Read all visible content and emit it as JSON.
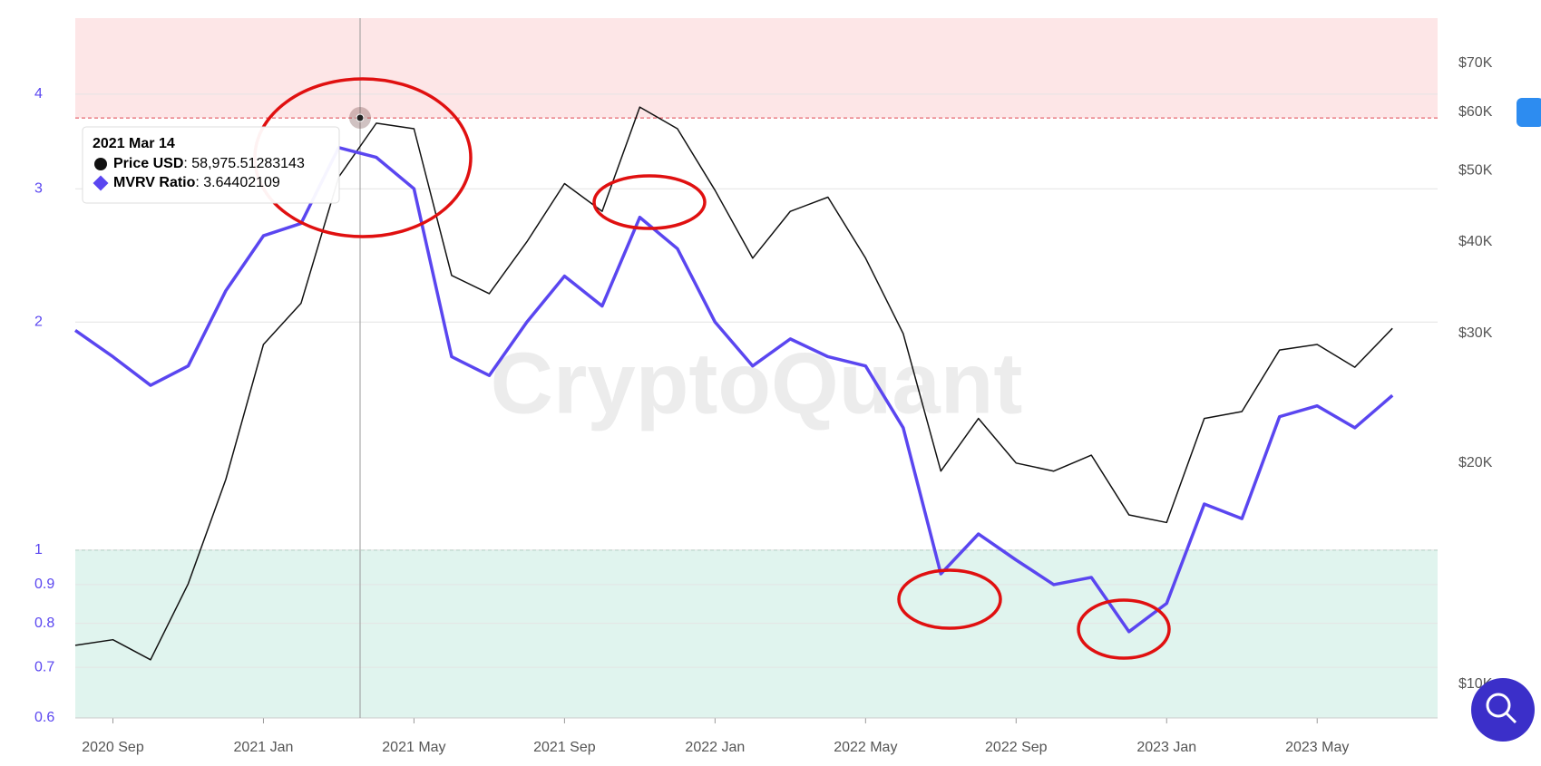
{
  "chart_data": {
    "type": "line",
    "watermark": "CryptoQuant",
    "categories": [
      "2020 Aug",
      "2020 Sep",
      "2020 Oct",
      "2020 Nov",
      "2020 Dec",
      "2021 Jan",
      "2021 Feb",
      "2021 Mar",
      "2021 Apr",
      "2021 May",
      "2021 Jun",
      "2021 Jul",
      "2021 Aug",
      "2021 Sep",
      "2021 Oct",
      "2021 Nov",
      "2021 Dec",
      "2022 Jan",
      "2022 Feb",
      "2022 Mar",
      "2022 Apr",
      "2022 May",
      "2022 Jun",
      "2022 Jul",
      "2022 Aug",
      "2022 Sep",
      "2022 Oct",
      "2022 Nov",
      "2022 Dec",
      "2023 Jan",
      "2023 Feb",
      "2023 Mar",
      "2023 Apr",
      "2023 May",
      "2023 Jun",
      "2023 Jul"
    ],
    "xticks": [
      "2020 Sep",
      "2021 Jan",
      "2021 May",
      "2021 Sep",
      "2022 Jan",
      "2022 May",
      "2022 Sep",
      "2023 Jan",
      "2023 May"
    ],
    "series": [
      {
        "name": "Price USD",
        "color": "#111111",
        "axis": "y2",
        "values": [
          11300,
          11500,
          10800,
          13700,
          19000,
          29000,
          33000,
          49000,
          58000,
          57000,
          36000,
          34000,
          40000,
          48000,
          44000,
          61000,
          57000,
          47000,
          38000,
          44000,
          46000,
          38000,
          30000,
          19500,
          23000,
          20000,
          19500,
          20500,
          17000,
          16600,
          23000,
          23500,
          28500,
          29000,
          27000,
          30500
        ]
      },
      {
        "name": "MVRV Ratio",
        "color": "#5a46f0",
        "values": [
          1.95,
          1.8,
          1.65,
          1.75,
          2.2,
          2.6,
          2.7,
          3.4,
          3.3,
          3.0,
          1.8,
          1.7,
          2.0,
          2.3,
          2.1,
          2.75,
          2.5,
          2.0,
          1.75,
          1.9,
          1.8,
          1.75,
          1.45,
          0.93,
          1.05,
          0.97,
          0.9,
          0.92,
          0.78,
          0.85,
          1.15,
          1.1,
          1.5,
          1.55,
          1.45,
          1.6
        ]
      }
    ],
    "ylog": true,
    "ylim": [
      0.6,
      5.04
    ],
    "yticks": [
      0.6,
      0.7,
      0.8,
      0.9,
      1,
      2,
      3,
      4
    ],
    "y2log": true,
    "y2lim": [
      9000,
      80600
    ],
    "y2ticks": [
      {
        "value": 10000,
        "label": "$10K"
      },
      {
        "value": 20000,
        "label": "$20K"
      },
      {
        "value": 30000,
        "label": "$30K"
      },
      {
        "value": 40000,
        "label": "$40K"
      },
      {
        "value": 50000,
        "label": "$50K"
      },
      {
        "value": 60000,
        "label": "$60K"
      },
      {
        "value": 70000,
        "label": "$70K"
      }
    ],
    "grid": true,
    "bands": [
      {
        "from": 3.72,
        "to": 5.04,
        "color": "#fde6e7",
        "line": "#e0454f"
      },
      {
        "from": 0.6,
        "to": 1,
        "color": "#e0f4ee",
        "line": "#3a9a6e"
      }
    ],
    "tooltip": {
      "date": "2021 Mar 14",
      "items": [
        {
          "value": 58975.51283143,
          "value_label": "58,975.51283143"
        },
        {
          "value": 3.64402109
        }
      ]
    }
  }
}
